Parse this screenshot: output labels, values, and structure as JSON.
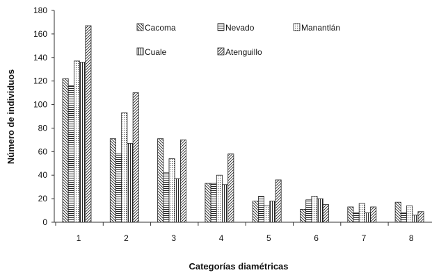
{
  "chart_data": {
    "type": "bar",
    "title": "",
    "xlabel": "Categorías diamétricas",
    "ylabel": "Número de individuos",
    "categories": [
      "1",
      "2",
      "3",
      "4",
      "5",
      "6",
      "7",
      "8"
    ],
    "ylim": [
      0,
      180
    ],
    "yticks": [
      0,
      20,
      40,
      60,
      80,
      100,
      120,
      140,
      160,
      180
    ],
    "grid": false,
    "legend_position": "top-right",
    "series": [
      {
        "name": "Cacoma",
        "pattern": "diagonal-back",
        "values": [
          122,
          71,
          71,
          33,
          18,
          11,
          13,
          17
        ]
      },
      {
        "name": "Nevado",
        "pattern": "horizontal",
        "values": [
          116,
          58,
          42,
          33,
          22,
          19,
          8,
          8
        ]
      },
      {
        "name": "Manantlán",
        "pattern": "dotted",
        "values": [
          137,
          93,
          54,
          40,
          14,
          22,
          16,
          14
        ]
      },
      {
        "name": "Cuale",
        "pattern": "vertical",
        "values": [
          136,
          67,
          37,
          32,
          18,
          20,
          8,
          6
        ]
      },
      {
        "name": "Atenguillo",
        "pattern": "diagonal-forward",
        "values": [
          167,
          110,
          70,
          58,
          36,
          15,
          13,
          9
        ]
      }
    ]
  }
}
